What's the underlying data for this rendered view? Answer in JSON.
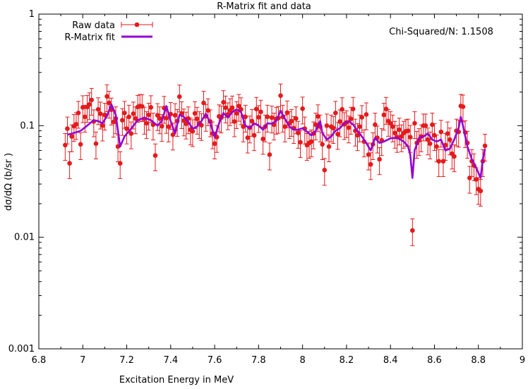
{
  "chart_data": {
    "type": "scatter",
    "title": "R-Matrix fit and data",
    "xlabel": "Excitation Energy in MeV",
    "ylabel": "dσ/dΩ (b/sr )",
    "annotation": "Chi-Squared/N: 1.1508",
    "xlim": [
      6.8,
      9
    ],
    "ylim": [
      0.001,
      1
    ],
    "yscale": "log",
    "xticks": [
      "6.8",
      "7",
      "7.2",
      "7.4",
      "7.6",
      "7.8",
      "8",
      "8.2",
      "8.4",
      "8.6",
      "8.8",
      "9"
    ],
    "xtick_values": [
      6.8,
      7.0,
      7.2,
      7.4,
      7.6,
      7.8,
      8.0,
      8.2,
      8.4,
      8.6,
      8.8,
      9.0
    ],
    "yticks": [
      "0.001",
      "0.01",
      "0.1",
      "1"
    ],
    "ytick_values": [
      0.001,
      0.01,
      0.1,
      1
    ],
    "legend_position": "top-left",
    "colors": {
      "raw": "#e41a1c",
      "fit": "#9400d3"
    },
    "series": [
      {
        "name": "Raw data",
        "kind": "errorbar",
        "rel_err": 0.27,
        "points": [
          [
            6.92,
            0.067
          ],
          [
            6.93,
            0.094
          ],
          [
            6.94,
            0.046
          ],
          [
            6.95,
            0.08
          ],
          [
            6.96,
            0.099
          ],
          [
            6.97,
            0.103
          ],
          [
            6.98,
            0.13
          ],
          [
            6.99,
            0.068
          ],
          [
            7.0,
            0.146
          ],
          [
            7.01,
            0.12
          ],
          [
            7.02,
            0.147
          ],
          [
            7.03,
            0.155
          ],
          [
            7.04,
            0.17
          ],
          [
            7.05,
            0.109
          ],
          [
            7.06,
            0.069
          ],
          [
            7.07,
            0.14
          ],
          [
            7.08,
            0.128
          ],
          [
            7.09,
            0.1
          ],
          [
            7.1,
            0.125
          ],
          [
            7.11,
            0.183
          ],
          [
            7.12,
            0.16
          ],
          [
            7.13,
            0.139
          ],
          [
            7.14,
            0.108
          ],
          [
            7.15,
            0.116
          ],
          [
            7.16,
            0.065
          ],
          [
            7.17,
            0.046
          ],
          [
            7.18,
            0.112
          ],
          [
            7.19,
            0.13
          ],
          [
            7.2,
            0.094
          ],
          [
            7.21,
            0.12
          ],
          [
            7.22,
            0.085
          ],
          [
            7.23,
            0.128
          ],
          [
            7.24,
            0.116
          ],
          [
            7.25,
            0.147
          ],
          [
            7.26,
            0.15
          ],
          [
            7.27,
            0.149
          ],
          [
            7.28,
            0.115
          ],
          [
            7.29,
            0.105
          ],
          [
            7.3,
            0.125
          ],
          [
            7.31,
            0.146
          ],
          [
            7.32,
            0.102
          ],
          [
            7.33,
            0.054
          ],
          [
            7.34,
            0.124
          ],
          [
            7.35,
            0.116
          ],
          [
            7.36,
            0.099
          ],
          [
            7.37,
            0.144
          ],
          [
            7.38,
            0.117
          ],
          [
            7.39,
            0.098
          ],
          [
            7.4,
            0.127
          ],
          [
            7.41,
            0.083
          ],
          [
            7.42,
            0.124
          ],
          [
            7.43,
            0.11
          ],
          [
            7.44,
            0.182
          ],
          [
            7.45,
            0.129
          ],
          [
            7.46,
            0.111
          ],
          [
            7.47,
            0.104
          ],
          [
            7.48,
            0.116
          ],
          [
            7.49,
            0.092
          ],
          [
            7.5,
            0.089
          ],
          [
            7.51,
            0.129
          ],
          [
            7.52,
            0.115
          ],
          [
            7.53,
            0.105
          ],
          [
            7.54,
            0.101
          ],
          [
            7.55,
            0.16
          ],
          [
            7.56,
            0.122
          ],
          [
            7.57,
            0.137
          ],
          [
            7.58,
            0.109
          ],
          [
            7.59,
            0.085
          ],
          [
            7.6,
            0.069
          ],
          [
            7.61,
            0.079
          ],
          [
            7.62,
            0.121
          ],
          [
            7.63,
            0.118
          ],
          [
            7.64,
            0.162
          ],
          [
            7.65,
            0.145
          ],
          [
            7.66,
            0.126
          ],
          [
            7.67,
            0.137
          ],
          [
            7.68,
            0.145
          ],
          [
            7.69,
            0.109
          ],
          [
            7.7,
            0.129
          ],
          [
            7.71,
            0.15
          ],
          [
            7.72,
            0.14
          ],
          [
            7.73,
            0.098
          ],
          [
            7.74,
            0.12
          ],
          [
            7.75,
            0.078
          ],
          [
            7.76,
            0.096
          ],
          [
            7.77,
            0.11
          ],
          [
            7.78,
            0.082
          ],
          [
            7.79,
            0.141
          ],
          [
            7.8,
            0.119
          ],
          [
            7.81,
            0.133
          ],
          [
            7.82,
            0.076
          ],
          [
            7.83,
            0.098
          ],
          [
            7.84,
            0.12
          ],
          [
            7.85,
            0.055
          ],
          [
            7.86,
            0.118
          ],
          [
            7.87,
            0.102
          ],
          [
            7.88,
            0.115
          ],
          [
            7.89,
            0.117
          ],
          [
            7.9,
            0.186
          ],
          [
            7.91,
            0.12
          ],
          [
            7.92,
            0.098
          ],
          [
            7.93,
            0.131
          ],
          [
            7.94,
            0.105
          ],
          [
            7.95,
            0.11
          ],
          [
            7.96,
            0.095
          ],
          [
            7.97,
            0.116
          ],
          [
            7.98,
            0.086
          ],
          [
            7.99,
            0.071
          ],
          [
            8.0,
            0.142
          ],
          [
            8.01,
            0.094
          ],
          [
            8.02,
            0.067
          ],
          [
            8.03,
            0.07
          ],
          [
            8.04,
            0.072
          ],
          [
            8.05,
            0.085
          ],
          [
            8.06,
            0.102
          ],
          [
            8.07,
            0.121
          ],
          [
            8.08,
            0.098
          ],
          [
            8.09,
            0.068
          ],
          [
            8.1,
            0.04
          ],
          [
            8.11,
            0.1
          ],
          [
            8.12,
            0.065
          ],
          [
            8.13,
            0.098
          ],
          [
            8.14,
            0.095
          ],
          [
            8.15,
            0.13
          ],
          [
            8.16,
            0.084
          ],
          [
            8.17,
            0.109
          ],
          [
            8.18,
            0.14
          ],
          [
            8.19,
            0.103
          ],
          [
            8.2,
            0.107
          ],
          [
            8.21,
            0.096
          ],
          [
            8.22,
            0.115
          ],
          [
            8.23,
            0.141
          ],
          [
            8.24,
            0.09
          ],
          [
            8.25,
            0.082
          ],
          [
            8.26,
            0.098
          ],
          [
            8.27,
            0.119
          ],
          [
            8.28,
            0.072
          ],
          [
            8.29,
            0.126
          ],
          [
            8.3,
            0.055
          ],
          [
            8.31,
            0.045
          ],
          [
            8.32,
            0.068
          ],
          [
            8.33,
            0.102
          ],
          [
            8.34,
            0.078
          ],
          [
            8.35,
            0.05
          ],
          [
            8.36,
            0.074
          ],
          [
            8.37,
            0.125
          ],
          [
            8.38,
            0.141
          ],
          [
            8.39,
            0.11
          ],
          [
            8.4,
            0.105
          ],
          [
            8.41,
            0.098
          ],
          [
            8.42,
            0.086
          ],
          [
            8.43,
            0.079
          ],
          [
            8.44,
            0.092
          ],
          [
            8.45,
            0.08
          ],
          [
            8.46,
            0.086
          ],
          [
            8.47,
            0.089
          ],
          [
            8.48,
            0.09
          ],
          [
            8.49,
            0.079
          ],
          [
            8.5,
            0.0115
          ],
          [
            8.51,
            0.105
          ],
          [
            8.52,
            0.07
          ],
          [
            8.53,
            0.074
          ],
          [
            8.54,
            0.08
          ],
          [
            8.55,
            0.1
          ],
          [
            8.56,
            0.1
          ],
          [
            8.57,
            0.075
          ],
          [
            8.58,
            0.069
          ],
          [
            8.59,
            0.102
          ],
          [
            8.6,
            0.082
          ],
          [
            8.61,
            0.065
          ],
          [
            8.62,
            0.048
          ],
          [
            8.63,
            0.088
          ],
          [
            8.64,
            0.048
          ],
          [
            8.65,
            0.067
          ],
          [
            8.66,
            0.085
          ],
          [
            8.67,
            0.075
          ],
          [
            8.68,
            0.056
          ],
          [
            8.69,
            0.053
          ],
          [
            8.7,
            0.09
          ],
          [
            8.71,
            0.088
          ],
          [
            8.72,
            0.15
          ],
          [
            8.73,
            0.148
          ],
          [
            8.74,
            0.087
          ],
          [
            8.75,
            0.07
          ],
          [
            8.76,
            0.034
          ],
          [
            8.77,
            0.048
          ],
          [
            8.78,
            0.044
          ],
          [
            8.79,
            0.033
          ],
          [
            8.8,
            0.027
          ],
          [
            8.81,
            0.026
          ],
          [
            8.82,
            0.048
          ],
          [
            8.83,
            0.066
          ]
        ]
      },
      {
        "name": "R-Matrix fit",
        "kind": "line",
        "points": [
          [
            6.93,
            0.083
          ],
          [
            6.96,
            0.086
          ],
          [
            6.99,
            0.09
          ],
          [
            7.02,
            0.1
          ],
          [
            7.05,
            0.112
          ],
          [
            7.07,
            0.11
          ],
          [
            7.09,
            0.105
          ],
          [
            7.11,
            0.122
          ],
          [
            7.13,
            0.155
          ],
          [
            7.15,
            0.125
          ],
          [
            7.17,
            0.065
          ],
          [
            7.19,
            0.08
          ],
          [
            7.22,
            0.094
          ],
          [
            7.25,
            0.112
          ],
          [
            7.28,
            0.118
          ],
          [
            7.31,
            0.112
          ],
          [
            7.34,
            0.1
          ],
          [
            7.36,
            0.11
          ],
          [
            7.38,
            0.15
          ],
          [
            7.4,
            0.11
          ],
          [
            7.42,
            0.085
          ],
          [
            7.44,
            0.125
          ],
          [
            7.46,
            0.12
          ],
          [
            7.48,
            0.108
          ],
          [
            7.5,
            0.094
          ],
          [
            7.52,
            0.098
          ],
          [
            7.54,
            0.11
          ],
          [
            7.56,
            0.128
          ],
          [
            7.58,
            0.106
          ],
          [
            7.6,
            0.079
          ],
          [
            7.62,
            0.105
          ],
          [
            7.64,
            0.13
          ],
          [
            7.66,
            0.118
          ],
          [
            7.68,
            0.132
          ],
          [
            7.7,
            0.14
          ],
          [
            7.72,
            0.132
          ],
          [
            7.74,
            0.1
          ],
          [
            7.76,
            0.095
          ],
          [
            7.78,
            0.105
          ],
          [
            7.8,
            0.1
          ],
          [
            7.82,
            0.092
          ],
          [
            7.84,
            0.105
          ],
          [
            7.86,
            0.104
          ],
          [
            7.88,
            0.11
          ],
          [
            7.9,
            0.136
          ],
          [
            7.92,
            0.115
          ],
          [
            7.94,
            0.098
          ],
          [
            7.96,
            0.092
          ],
          [
            7.98,
            0.092
          ],
          [
            8.0,
            0.095
          ],
          [
            8.02,
            0.088
          ],
          [
            8.04,
            0.082
          ],
          [
            8.06,
            0.09
          ],
          [
            8.08,
            0.11
          ],
          [
            8.09,
            0.086
          ],
          [
            8.11,
            0.075
          ],
          [
            8.13,
            0.08
          ],
          [
            8.15,
            0.09
          ],
          [
            8.17,
            0.095
          ],
          [
            8.19,
            0.105
          ],
          [
            8.21,
            0.11
          ],
          [
            8.23,
            0.102
          ],
          [
            8.25,
            0.09
          ],
          [
            8.27,
            0.08
          ],
          [
            8.29,
            0.07
          ],
          [
            8.31,
            0.06
          ],
          [
            8.33,
            0.078
          ],
          [
            8.35,
            0.07
          ],
          [
            8.37,
            0.072
          ],
          [
            8.4,
            0.077
          ],
          [
            8.43,
            0.078
          ],
          [
            8.46,
            0.072
          ],
          [
            8.48,
            0.065
          ],
          [
            8.49,
            0.055
          ],
          [
            8.5,
            0.034
          ],
          [
            8.51,
            0.06
          ],
          [
            8.53,
            0.078
          ],
          [
            8.55,
            0.08
          ],
          [
            8.57,
            0.085
          ],
          [
            8.59,
            0.075
          ],
          [
            8.61,
            0.072
          ],
          [
            8.63,
            0.075
          ],
          [
            8.65,
            0.06
          ],
          [
            8.67,
            0.062
          ],
          [
            8.69,
            0.075
          ],
          [
            8.71,
            0.095
          ],
          [
            8.72,
            0.12
          ],
          [
            8.73,
            0.1
          ],
          [
            8.75,
            0.065
          ],
          [
            8.77,
            0.05
          ],
          [
            8.79,
            0.042
          ],
          [
            8.81,
            0.034
          ],
          [
            8.82,
            0.05
          ],
          [
            8.83,
            0.062
          ]
        ]
      }
    ]
  }
}
